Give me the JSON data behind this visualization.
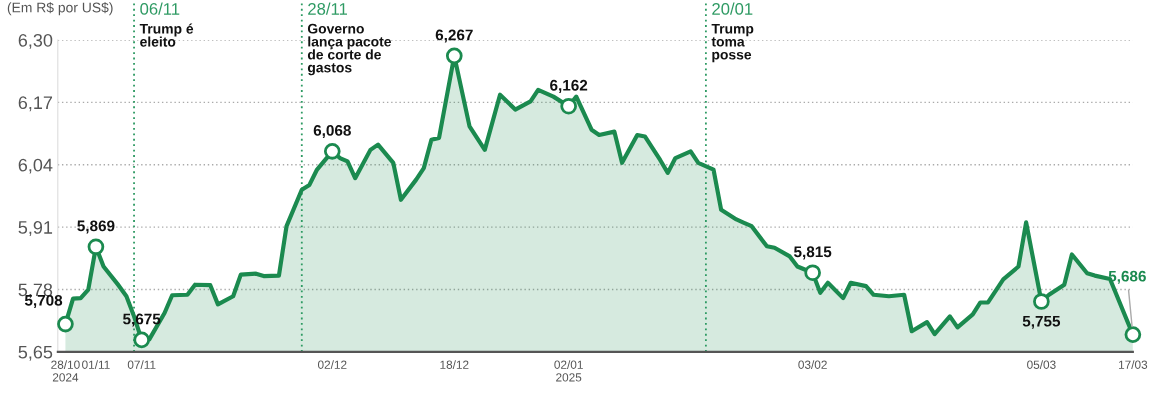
{
  "chart_data": {
    "type": "area",
    "subtitle": "(Em R$ por US$)",
    "x": [
      "2024-10-28",
      "2024-10-29",
      "2024-10-30",
      "2024-10-31",
      "2024-11-01",
      "2024-11-02",
      "2024-11-04",
      "2024-11-05",
      "2024-11-06",
      "2024-11-07",
      "2024-11-08",
      "2024-11-10",
      "2024-11-11",
      "2024-11-13",
      "2024-11-14",
      "2024-11-16",
      "2024-11-17",
      "2024-11-19",
      "2024-11-20",
      "2024-11-22",
      "2024-11-23",
      "2024-11-25",
      "2024-11-26",
      "2024-11-28",
      "2024-11-29",
      "2024-11-30",
      "2024-12-02",
      "2024-12-03",
      "2024-12-04",
      "2024-12-05",
      "2024-12-07",
      "2024-12-08",
      "2024-12-10",
      "2024-12-11",
      "2024-12-13",
      "2024-12-14",
      "2024-12-15",
      "2024-12-16",
      "2024-12-18",
      "2024-12-20",
      "2024-12-22",
      "2024-12-24",
      "2024-12-26",
      "2024-12-28",
      "2024-12-29",
      "2024-12-31",
      "2025-01-02",
      "2025-01-03",
      "2025-01-05",
      "2025-01-06",
      "2025-01-08",
      "2025-01-09",
      "2025-01-11",
      "2025-01-12",
      "2025-01-14",
      "2025-01-15",
      "2025-01-16",
      "2025-01-18",
      "2025-01-19",
      "2025-01-21",
      "2025-01-22",
      "2025-01-24",
      "2025-01-25",
      "2025-01-26",
      "2025-01-28",
      "2025-01-29",
      "2025-01-31",
      "2025-02-01",
      "2025-02-03",
      "2025-02-04",
      "2025-02-05",
      "2025-02-07",
      "2025-02-08",
      "2025-02-10",
      "2025-02-11",
      "2025-02-13",
      "2025-02-15",
      "2025-02-16",
      "2025-02-18",
      "2025-02-19",
      "2025-02-21",
      "2025-02-22",
      "2025-02-24",
      "2025-02-25",
      "2025-02-26",
      "2025-02-28",
      "2025-03-02",
      "2025-03-03",
      "2025-03-05",
      "2025-03-06",
      "2025-03-08",
      "2025-03-09",
      "2025-03-11",
      "2025-03-12",
      "2025-03-14",
      "2025-03-17"
    ],
    "series": [
      {
        "color": "#1b8a4f",
        "values": [
          5.708,
          5.761,
          5.762,
          5.78,
          5.869,
          5.828,
          5.788,
          5.766,
          5.724,
          5.675,
          5.676,
          5.731,
          5.768,
          5.769,
          5.79,
          5.789,
          5.749,
          5.766,
          5.811,
          5.813,
          5.808,
          5.809,
          5.912,
          5.988,
          5.998,
          6.03,
          6.068,
          6.054,
          6.047,
          6.012,
          6.071,
          6.082,
          6.044,
          5.967,
          6.009,
          6.033,
          6.092,
          6.096,
          6.267,
          6.12,
          6.071,
          6.186,
          6.155,
          6.172,
          6.196,
          6.182,
          6.162,
          6.182,
          6.113,
          6.102,
          6.109,
          6.044,
          6.102,
          6.099,
          6.05,
          6.023,
          6.054,
          6.068,
          6.044,
          6.03,
          5.946,
          5.926,
          5.919,
          5.912,
          5.87,
          5.867,
          5.849,
          5.828,
          5.815,
          5.773,
          5.794,
          5.762,
          5.794,
          5.787,
          5.769,
          5.766,
          5.769,
          5.693,
          5.712,
          5.687,
          5.724,
          5.701,
          5.728,
          5.753,
          5.753,
          5.801,
          5.828,
          5.92,
          5.755,
          5.769,
          5.79,
          5.853,
          5.814,
          5.809,
          5.802,
          5.686
        ]
      }
    ],
    "xlim": [
      "2024-10-27",
      "2025-03-17"
    ],
    "xticks": [
      {
        "value": "2024-10-28",
        "label": "28/10\n2024"
      },
      {
        "value": "2024-11-01",
        "label": "01/11"
      },
      {
        "value": "2024-11-07",
        "label": "07/11"
      },
      {
        "value": "2024-12-02",
        "label": "02/12"
      },
      {
        "value": "2024-12-18",
        "label": "18/12"
      },
      {
        "value": "2025-01-02",
        "label": "02/01\n2025"
      },
      {
        "value": "2025-02-03",
        "label": "03/02"
      },
      {
        "value": "2025-03-05",
        "label": "05/03"
      },
      {
        "value": "2025-03-17",
        "label": "17/03"
      }
    ],
    "ylim": [
      5.65,
      6.3
    ],
    "yticks": [
      {
        "value": 5.65,
        "label": "5,65"
      },
      {
        "value": 5.78,
        "label": "5,78"
      },
      {
        "value": 5.91,
        "label": "5,91"
      },
      {
        "value": 6.04,
        "label": "6,04"
      },
      {
        "value": 6.17,
        "label": "6,17"
      },
      {
        "value": 6.3,
        "label": "6,30"
      }
    ],
    "grid": "y",
    "ref_lines": [
      {
        "axis": "x",
        "value": "2024-11-06",
        "label": "06/11\nTrump é\neleito",
        "color": "#2e9a63",
        "line_style": "dotted"
      },
      {
        "axis": "x",
        "value": "2024-11-28",
        "label": "28/11\nGoverno\nlança pacote\nde corte de\ngastos",
        "color": "#2e9a63",
        "line_style": "dotted"
      },
      {
        "axis": "x",
        "value": "2025-01-20",
        "label": "20/01\nTrump\ntoma\nposse",
        "color": "#2e9a63",
        "line_style": "dotted"
      }
    ],
    "annotations": [
      {
        "text": "5,708",
        "x": "2024-10-28",
        "y": 5.708
      },
      {
        "text": "5,869",
        "x": "2024-11-01",
        "y": 5.869
      },
      {
        "text": "5,675",
        "x": "2024-11-07",
        "y": 5.675
      },
      {
        "text": "6,068",
        "x": "2024-12-02",
        "y": 6.068
      },
      {
        "text": "6,267",
        "x": "2024-12-18",
        "y": 6.267
      },
      {
        "text": "6,162",
        "x": "2025-01-02",
        "y": 6.162
      },
      {
        "text": "5,815",
        "x": "2025-02-03",
        "y": 5.815
      },
      {
        "text": "5,755",
        "x": "2025-03-05",
        "y": 5.755
      },
      {
        "text": "5,686",
        "x": "2025-03-17",
        "y": 5.686
      }
    ]
  }
}
